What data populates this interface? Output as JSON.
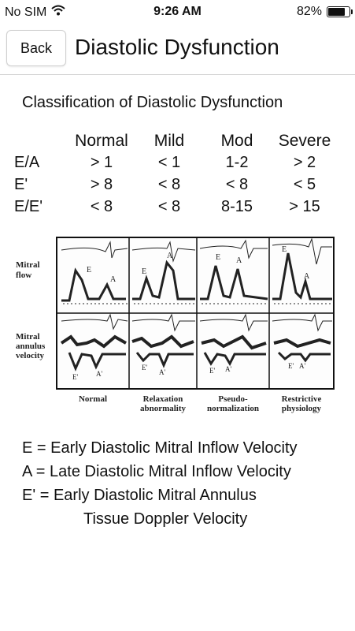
{
  "status_bar": {
    "carrier": "No SIM",
    "time": "9:26 AM",
    "battery_percent": "82%",
    "battery_level": 0.82
  },
  "nav": {
    "back_label": "Back",
    "title": "Diastolic Dysfunction"
  },
  "section_title": "Classification of Diastolic Dysfunction",
  "table": {
    "headers": [
      "Normal",
      "Mild",
      "Mod",
      "Severe"
    ],
    "rows": [
      {
        "label": "E/A",
        "values": [
          "> 1",
          "< 1",
          "1-2",
          "> 2"
        ]
      },
      {
        "label": "E'",
        "values": [
          "> 8",
          "< 8",
          "< 8",
          "< 5"
        ]
      },
      {
        "label": "E/E'",
        "values": [
          "< 8",
          "< 8",
          "8-15",
          "> 15"
        ]
      }
    ]
  },
  "figure": {
    "row_labels": [
      [
        "Mitral",
        "flow"
      ],
      [
        "Mitral",
        "annulus",
        "velocity"
      ]
    ],
    "column_captions": [
      [
        "Normal"
      ],
      [
        "Relaxation",
        "abnormality"
      ],
      [
        "Pseudo-",
        "normalization"
      ],
      [
        "Restrictive",
        "physiology"
      ]
    ],
    "wave_letters": {
      "e": "E",
      "a": "A",
      "e_prime": "E'",
      "a_prime": "A'"
    }
  },
  "legend": [
    "E = Early Diastolic Mitral Inflow Velocity",
    "A = Late Diastolic Mitral Inflow Velocity",
    "E' = Early Diastolic Mitral Annulus",
    "Tissue Doppler Velocity"
  ]
}
